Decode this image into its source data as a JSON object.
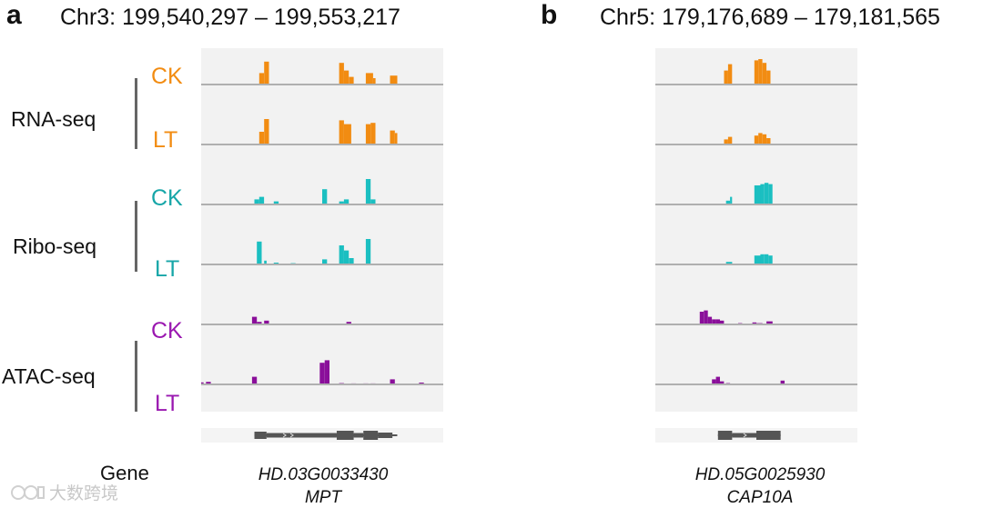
{
  "panels": [
    {
      "letter": "a",
      "region": "Chr3: 199,540,297 – 199,553,217",
      "gene_id": "HD.03G0033430",
      "gene_name": "MPT"
    },
    {
      "letter": "b",
      "region": "Chr5: 179,176,689 – 179,181,565",
      "gene_id": "HD.05G0025930",
      "gene_name": "CAP10A"
    }
  ],
  "assays": [
    {
      "name": "RNA-seq",
      "color": "#f28c12"
    },
    {
      "name": "Ribo-seq",
      "color": "#1bbfc1"
    },
    {
      "name": "ATAC-seq",
      "color": "#8a0f9a"
    }
  ],
  "conditions": [
    "CK",
    "LT",
    "CK",
    "LT",
    "CK",
    "LT"
  ],
  "gene_label": "Gene",
  "watermark": "大数跨境",
  "colors": {
    "rna": "#f28c12",
    "ribo": "#1bbfc1",
    "atac": "#8a0f9a",
    "track_bg": "#f2f2f2",
    "baseline": "#b0b0b0",
    "gene_model": "#555555"
  },
  "chart_data": [
    {
      "type": "coverage tracks",
      "panel": "a",
      "title": "Chr3: 199,540,297 – 199,553,217",
      "x_unit": "relative position in region (0–1)",
      "y_unit": "relative read coverage (0–1)",
      "tracks": [
        {
          "assay": "RNA-seq",
          "condition": "CK",
          "bins": [
            [
              0.24,
              0.26,
              0.45
            ],
            [
              0.26,
              0.28,
              0.9
            ],
            [
              0.57,
              0.59,
              0.85
            ],
            [
              0.59,
              0.61,
              0.55
            ],
            [
              0.61,
              0.63,
              0.3
            ],
            [
              0.68,
              0.71,
              0.45
            ],
            [
              0.71,
              0.72,
              0.25
            ],
            [
              0.78,
              0.81,
              0.35
            ]
          ]
        },
        {
          "assay": "RNA-seq",
          "condition": "LT",
          "bins": [
            [
              0.24,
              0.26,
              0.5
            ],
            [
              0.26,
              0.28,
              1.0
            ],
            [
              0.57,
              0.59,
              0.95
            ],
            [
              0.59,
              0.62,
              0.8
            ],
            [
              0.68,
              0.7,
              0.8
            ],
            [
              0.7,
              0.72,
              0.85
            ],
            [
              0.78,
              0.8,
              0.55
            ],
            [
              0.8,
              0.81,
              0.45
            ]
          ]
        },
        {
          "assay": "Ribo-seq",
          "condition": "CK",
          "bins": [
            [
              0.22,
              0.24,
              0.2
            ],
            [
              0.24,
              0.26,
              0.3
            ],
            [
              0.3,
              0.32,
              0.12
            ],
            [
              0.5,
              0.52,
              0.6
            ],
            [
              0.57,
              0.59,
              0.12
            ],
            [
              0.59,
              0.61,
              0.2
            ],
            [
              0.68,
              0.7,
              1.0
            ],
            [
              0.7,
              0.72,
              0.2
            ]
          ]
        },
        {
          "assay": "Ribo-seq",
          "condition": "LT",
          "bins": [
            [
              0.23,
              0.25,
              0.9
            ],
            [
              0.26,
              0.27,
              0.15
            ],
            [
              0.3,
              0.32,
              0.07
            ],
            [
              0.37,
              0.39,
              0.05
            ],
            [
              0.5,
              0.52,
              0.2
            ],
            [
              0.57,
              0.59,
              0.75
            ],
            [
              0.59,
              0.61,
              0.55
            ],
            [
              0.61,
              0.63,
              0.25
            ],
            [
              0.68,
              0.7,
              1.0
            ]
          ]
        },
        {
          "assay": "ATAC-seq",
          "condition": "CK",
          "bins": [
            [
              0.21,
              0.23,
              0.3
            ],
            [
              0.23,
              0.25,
              0.1
            ],
            [
              0.26,
              0.28,
              0.15
            ],
            [
              0.6,
              0.62,
              0.1
            ]
          ]
        },
        {
          "assay": "ATAC-seq",
          "condition": "LT",
          "bins": [
            [
              0.0,
              0.01,
              0.08
            ],
            [
              0.02,
              0.04,
              0.1
            ],
            [
              0.14,
              0.15,
              0.02
            ],
            [
              0.21,
              0.23,
              0.3
            ],
            [
              0.49,
              0.51,
              0.85
            ],
            [
              0.51,
              0.53,
              0.95
            ],
            [
              0.57,
              0.59,
              0.05
            ],
            [
              0.62,
              0.64,
              0.04
            ],
            [
              0.67,
              0.69,
              0.04
            ],
            [
              0.7,
              0.72,
              0.04
            ],
            [
              0.78,
              0.8,
              0.2
            ],
            [
              0.9,
              0.92,
              0.07
            ]
          ]
        }
      ]
    },
    {
      "type": "coverage tracks",
      "panel": "b",
      "title": "Chr5: 179,176,689 – 179,181,565",
      "x_unit": "relative position in region (0–1)",
      "y_unit": "relative read coverage (0–1)",
      "tracks": [
        {
          "assay": "RNA-seq",
          "condition": "CK",
          "bins": [
            [
              0.34,
              0.36,
              0.55
            ],
            [
              0.36,
              0.38,
              0.8
            ],
            [
              0.49,
              0.51,
              0.95
            ],
            [
              0.51,
              0.53,
              1.0
            ],
            [
              0.53,
              0.55,
              0.85
            ],
            [
              0.55,
              0.57,
              0.55
            ]
          ]
        },
        {
          "assay": "RNA-seq",
          "condition": "LT",
          "bins": [
            [
              0.34,
              0.36,
              0.2
            ],
            [
              0.36,
              0.38,
              0.3
            ],
            [
              0.49,
              0.51,
              0.35
            ],
            [
              0.51,
              0.53,
              0.45
            ],
            [
              0.53,
              0.55,
              0.4
            ],
            [
              0.55,
              0.57,
              0.25
            ]
          ]
        },
        {
          "assay": "Ribo-seq",
          "condition": "CK",
          "bins": [
            [
              0.35,
              0.37,
              0.15
            ],
            [
              0.37,
              0.38,
              0.3
            ],
            [
              0.49,
              0.52,
              0.75
            ],
            [
              0.52,
              0.54,
              0.8
            ],
            [
              0.54,
              0.56,
              0.85
            ],
            [
              0.56,
              0.58,
              0.8
            ]
          ]
        },
        {
          "assay": "Ribo-seq",
          "condition": "LT",
          "bins": [
            [
              0.35,
              0.38,
              0.1
            ],
            [
              0.49,
              0.52,
              0.35
            ],
            [
              0.52,
              0.54,
              0.4
            ],
            [
              0.54,
              0.56,
              0.4
            ],
            [
              0.56,
              0.58,
              0.35
            ]
          ]
        },
        {
          "assay": "ATAC-seq",
          "condition": "CK",
          "bins": [
            [
              0.22,
              0.24,
              0.5
            ],
            [
              0.24,
              0.26,
              0.55
            ],
            [
              0.26,
              0.28,
              0.3
            ],
            [
              0.28,
              0.3,
              0.2
            ],
            [
              0.3,
              0.32,
              0.2
            ],
            [
              0.32,
              0.34,
              0.15
            ],
            [
              0.41,
              0.43,
              0.05
            ],
            [
              0.48,
              0.5,
              0.08
            ],
            [
              0.5,
              0.53,
              0.05
            ],
            [
              0.55,
              0.58,
              0.12
            ]
          ]
        },
        {
          "assay": "ATAC-seq",
          "condition": "LT",
          "bins": [
            [
              0.28,
              0.3,
              0.2
            ],
            [
              0.3,
              0.32,
              0.3
            ],
            [
              0.32,
              0.34,
              0.12
            ],
            [
              0.35,
              0.37,
              0.05
            ],
            [
              0.38,
              0.4,
              0.03
            ],
            [
              0.62,
              0.64,
              0.15
            ]
          ]
        }
      ]
    }
  ]
}
